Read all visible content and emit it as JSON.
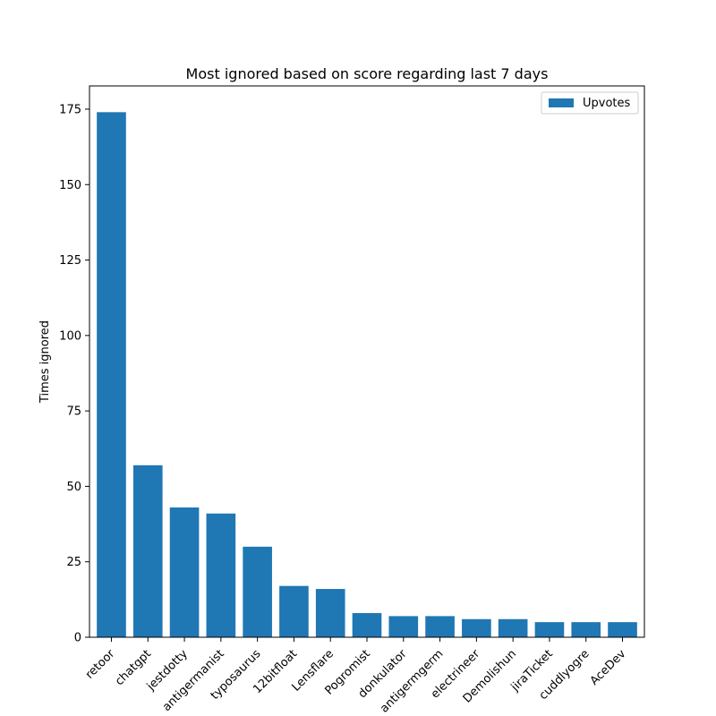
{
  "chart_data": {
    "type": "bar",
    "title": "Most ignored based on score regarding last 7 days",
    "xlabel": "",
    "ylabel": "Times ignored",
    "categories": [
      "retoor",
      "chatgpt",
      "jestdotty",
      "antigermanist",
      "typosaurus",
      "12bitfloat",
      "Lensflare",
      "Pogromist",
      "donkulator",
      "antigermgerm",
      "electrineer",
      "Demolishun",
      "jiraTicket",
      "cuddlyogre",
      "AceDev"
    ],
    "series": [
      {
        "name": "Upvotes",
        "values": [
          174,
          57,
          43,
          41,
          30,
          17,
          16,
          8,
          7,
          7,
          6,
          6,
          5,
          5,
          5
        ]
      }
    ],
    "ylim": [
      0,
      182.7
    ],
    "yticks": [
      0,
      25,
      50,
      75,
      100,
      125,
      150,
      175
    ],
    "grid": false,
    "legend_position": "upper right",
    "colors": {
      "bar": "#1f77b4",
      "axes": "#000000",
      "legend_border": "#cccccc"
    }
  }
}
